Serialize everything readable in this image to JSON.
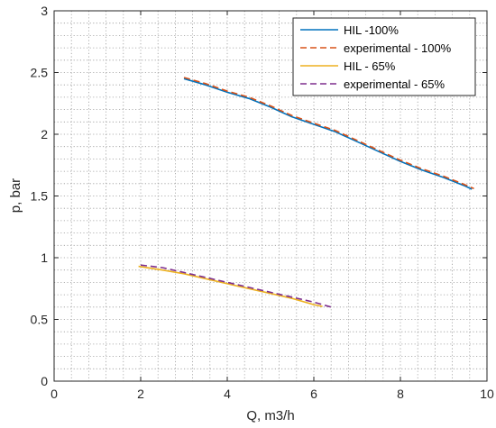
{
  "chart_data": {
    "type": "line",
    "title": "",
    "xlabel": "Q, m3/h",
    "ylabel": "p, bar",
    "xlim": [
      0,
      10
    ],
    "ylim": [
      0,
      3
    ],
    "xticks": [
      0,
      2,
      4,
      6,
      8,
      10
    ],
    "yticks": [
      0,
      0.5,
      1,
      1.5,
      2,
      2.5,
      3
    ],
    "xtick_labels": [
      "0",
      "2",
      "4",
      "6",
      "8",
      "10"
    ],
    "ytick_labels": [
      "0",
      "0.5",
      "1",
      "1.5",
      "2",
      "2.5",
      "3"
    ],
    "minor_x_step": 0.4,
    "minor_y_step": 0.1,
    "grid": true,
    "grid_style": "dotted",
    "legend_position": "top-right",
    "series": [
      {
        "name": "HIL -100%",
        "color": "#0072BD",
        "dash": "solid",
        "x": [
          3.0,
          3.5,
          4.0,
          4.5,
          5.0,
          5.5,
          6.0,
          6.5,
          7.0,
          7.5,
          8.0,
          8.5,
          9.0,
          9.5,
          9.65
        ],
        "y": [
          2.45,
          2.4,
          2.34,
          2.29,
          2.22,
          2.14,
          2.08,
          2.02,
          1.94,
          1.86,
          1.78,
          1.71,
          1.65,
          1.58,
          1.555
        ]
      },
      {
        "name": "experimental - 100%",
        "color": "#D95319",
        "dash": "dashed",
        "x": [
          3.0,
          3.5,
          4.0,
          4.5,
          5.0,
          5.5,
          6.0,
          6.5,
          7.0,
          7.5,
          8.0,
          8.5,
          9.0,
          9.5,
          9.7
        ],
        "y": [
          2.46,
          2.41,
          2.35,
          2.3,
          2.23,
          2.15,
          2.09,
          2.03,
          1.95,
          1.87,
          1.79,
          1.72,
          1.66,
          1.59,
          1.56
        ]
      },
      {
        "name": "HIL - 65%",
        "color": "#EDB120",
        "dash": "solid",
        "x": [
          1.95,
          2.5,
          3.0,
          3.5,
          4.0,
          4.5,
          5.0,
          5.5,
          6.0,
          6.2
        ],
        "y": [
          0.93,
          0.9,
          0.87,
          0.83,
          0.79,
          0.75,
          0.71,
          0.67,
          0.62,
          0.605
        ]
      },
      {
        "name": "experimental - 65%",
        "color": "#7E2F8E",
        "dash": "dashed",
        "x": [
          2.0,
          2.5,
          3.0,
          3.5,
          4.0,
          4.5,
          5.0,
          5.5,
          6.0,
          6.4
        ],
        "y": [
          0.94,
          0.92,
          0.88,
          0.84,
          0.8,
          0.76,
          0.72,
          0.68,
          0.64,
          0.6
        ]
      }
    ]
  }
}
